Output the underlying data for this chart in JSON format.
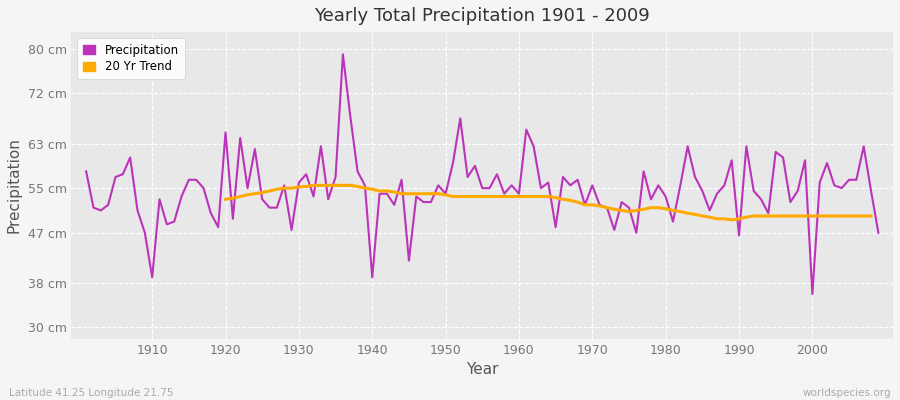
{
  "title": "Yearly Total Precipitation 1901 - 2009",
  "xlabel": "Year",
  "ylabel": "Precipitation",
  "subtitle_left": "Latitude 41.25 Longitude 21.75",
  "subtitle_right": "worldspecies.org",
  "ylim": [
    28,
    83
  ],
  "yticks": [
    30,
    38,
    47,
    55,
    63,
    72,
    80
  ],
  "ytick_labels": [
    "30 cm",
    "38 cm",
    "47 cm",
    "55 cm",
    "63 cm",
    "72 cm",
    "80 cm"
  ],
  "xlim": [
    1899,
    2011
  ],
  "xticks": [
    1910,
    1920,
    1930,
    1940,
    1950,
    1960,
    1970,
    1980,
    1990,
    2000
  ],
  "fig_bg_color": "#f5f5f5",
  "plot_bg_color": "#e8e8e8",
  "precip_color": "#bb33bb",
  "trend_color": "#ffaa00",
  "grid_color": "#ffffff",
  "legend_labels": [
    "Precipitation",
    "20 Yr Trend"
  ],
  "years": [
    1901,
    1902,
    1903,
    1904,
    1905,
    1906,
    1907,
    1908,
    1909,
    1910,
    1911,
    1912,
    1913,
    1914,
    1915,
    1916,
    1917,
    1918,
    1919,
    1920,
    1921,
    1922,
    1923,
    1924,
    1925,
    1926,
    1927,
    1928,
    1929,
    1930,
    1931,
    1932,
    1933,
    1934,
    1935,
    1936,
    1937,
    1938,
    1939,
    1940,
    1941,
    1942,
    1943,
    1944,
    1945,
    1946,
    1947,
    1948,
    1949,
    1950,
    1951,
    1952,
    1953,
    1954,
    1955,
    1956,
    1957,
    1958,
    1959,
    1960,
    1961,
    1962,
    1963,
    1964,
    1965,
    1966,
    1967,
    1968,
    1969,
    1970,
    1971,
    1972,
    1973,
    1974,
    1975,
    1976,
    1977,
    1978,
    1979,
    1980,
    1981,
    1982,
    1983,
    1984,
    1985,
    1986,
    1987,
    1988,
    1989,
    1990,
    1991,
    1992,
    1993,
    1994,
    1995,
    1996,
    1997,
    1998,
    1999,
    2000,
    2001,
    2002,
    2003,
    2004,
    2005,
    2006,
    2007,
    2008,
    2009
  ],
  "precip": [
    58.0,
    51.5,
    51.0,
    52.0,
    57.0,
    57.5,
    60.5,
    51.0,
    47.0,
    39.0,
    53.0,
    48.5,
    49.0,
    53.5,
    56.5,
    56.5,
    55.0,
    50.5,
    48.0,
    65.0,
    49.5,
    64.0,
    55.0,
    62.0,
    53.0,
    51.5,
    51.5,
    55.5,
    47.5,
    56.0,
    57.5,
    53.5,
    62.5,
    53.0,
    57.0,
    79.0,
    68.0,
    58.0,
    55.5,
    39.0,
    54.0,
    54.0,
    52.0,
    56.5,
    42.0,
    53.5,
    52.5,
    52.5,
    55.5,
    54.0,
    59.5,
    67.5,
    57.0,
    59.0,
    55.0,
    55.0,
    57.5,
    54.0,
    55.5,
    54.0,
    65.5,
    62.5,
    55.0,
    56.0,
    48.0,
    57.0,
    55.5,
    56.5,
    52.0,
    55.5,
    52.0,
    51.5,
    47.5,
    52.5,
    51.5,
    47.0,
    58.0,
    53.0,
    55.5,
    53.5,
    49.0,
    55.5,
    62.5,
    57.0,
    54.5,
    51.0,
    54.0,
    55.5,
    60.0,
    46.5,
    62.5,
    54.5,
    53.0,
    50.5,
    61.5,
    60.5,
    52.5,
    54.5,
    60.0,
    36.0,
    56.0,
    59.5,
    55.5,
    55.0,
    56.5,
    56.5,
    62.5,
    54.5,
    47.0
  ],
  "trend": [
    null,
    null,
    null,
    null,
    null,
    null,
    null,
    null,
    null,
    null,
    null,
    null,
    null,
    null,
    null,
    null,
    null,
    null,
    null,
    53.0,
    53.2,
    53.5,
    53.8,
    54.0,
    54.2,
    54.5,
    54.8,
    55.0,
    55.0,
    55.2,
    55.3,
    55.5,
    55.5,
    55.5,
    55.5,
    55.5,
    55.5,
    55.3,
    55.0,
    54.8,
    54.5,
    54.5,
    54.3,
    54.0,
    54.0,
    54.0,
    54.0,
    54.0,
    54.0,
    53.8,
    53.5,
    53.5,
    53.5,
    53.5,
    53.5,
    53.5,
    53.5,
    53.5,
    53.5,
    53.5,
    53.5,
    53.5,
    53.5,
    53.5,
    53.3,
    53.0,
    52.8,
    52.5,
    52.0,
    52.0,
    51.8,
    51.5,
    51.2,
    51.0,
    50.8,
    51.0,
    51.2,
    51.5,
    51.5,
    51.3,
    51.0,
    50.8,
    50.5,
    50.3,
    50.0,
    49.8,
    49.5,
    49.5,
    49.3,
    49.5,
    49.8,
    50.0,
    50.0,
    50.0,
    50.0,
    50.0,
    50.0,
    50.0,
    50.0,
    50.0,
    50.0,
    50.0,
    50.0,
    50.0,
    50.0,
    50.0,
    50.0,
    50.0
  ]
}
